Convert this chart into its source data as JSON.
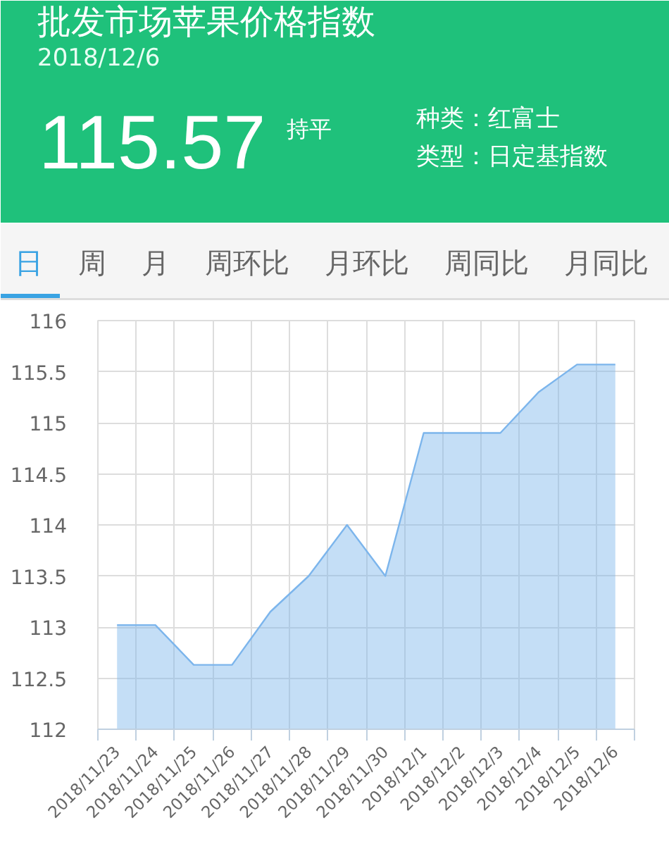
{
  "chart_data": {
    "type": "area",
    "title": "批发市场苹果价格指数",
    "subtitle": "2018/12/6",
    "annotations": [
      "115.57",
      "持平",
      "种类：红富士",
      "类型：日定基指数",
      "日",
      "周",
      "月",
      "周环比",
      "月环比",
      "周同比",
      "月同比"
    ],
    "categories": [
      "2018/11/23",
      "2018/11/24",
      "2018/11/25",
      "2018/11/26",
      "2018/11/27",
      "2018/11/28",
      "2018/11/29",
      "2018/11/30",
      "2018/12/1",
      "2018/12/2",
      "2018/12/3",
      "2018/12/4",
      "2018/12/5",
      "2018/12/6"
    ],
    "series": [
      {
        "color": "#7cb5ec",
        "values": [
          113.02,
          113.02,
          112.63,
          112.63,
          113.15,
          113.5,
          114.0,
          113.5,
          114.9,
          114.9,
          114.9,
          115.3,
          115.57,
          115.57
        ]
      }
    ],
    "ylim": [
      112,
      116
    ],
    "yticks": [
      112,
      112.5,
      113,
      113.5,
      114,
      114.5,
      115,
      115.5,
      116
    ],
    "grid": true
  }
}
